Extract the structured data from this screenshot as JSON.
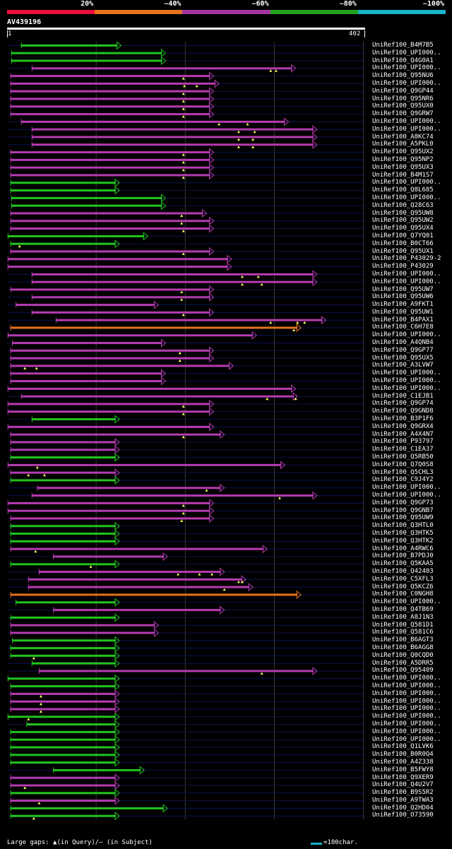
{
  "legend": {
    "segments": [
      {
        "color": "#e8103a",
        "label": "20%"
      },
      {
        "color": "#e5721d",
        "label": "~40%"
      },
      {
        "color": "#a534a0",
        "label": "~60%"
      },
      {
        "color": "#22a21e",
        "label": "~80%"
      },
      {
        "color": "#17b3c8",
        "label": "~100%"
      }
    ]
  },
  "query": {
    "name": "AV439196",
    "start": "1",
    "end": "402",
    "length": 402
  },
  "colors": {
    "green": "#22c41e",
    "purple": "#b53bb0",
    "orange": "#e5721d",
    "cyan": "#17b3c8",
    "row_line": "#0b1550",
    "grid": "#3a3a3a"
  },
  "hits": [
    {
      "label": "UniRef100_B4M7B5",
      "start": 16,
      "end": 128,
      "color": "green",
      "gaps": []
    },
    {
      "label": "UniRef100_UPI000..",
      "start": 5,
      "end": 178,
      "color": "green",
      "gaps": []
    },
    {
      "label": "UniRef100_Q4G0A1",
      "start": 5,
      "end": 178,
      "color": "green",
      "gaps": []
    },
    {
      "label": "UniRef100_UPI000..",
      "start": 28,
      "end": 324,
      "color": "purple",
      "gaps": [
        296,
        302
      ]
    },
    {
      "label": "UniRef100_Q95NU6",
      "start": 4,
      "end": 232,
      "color": "purple",
      "gaps": [
        198
      ]
    },
    {
      "label": "UniRef100_UPI000..",
      "start": 4,
      "end": 238,
      "color": "purple",
      "gaps": [
        199,
        213
      ]
    },
    {
      "label": "UniRef100_Q9GP44",
      "start": 4,
      "end": 232,
      "color": "purple",
      "gaps": [
        198
      ]
    },
    {
      "label": "UniRef100_Q95NR6",
      "start": 4,
      "end": 232,
      "color": "purple",
      "gaps": [
        198
      ]
    },
    {
      "label": "UniRef100_Q95UX0",
      "start": 4,
      "end": 232,
      "color": "purple",
      "gaps": [
        198
      ]
    },
    {
      "label": "UniRef100_Q9GRW7",
      "start": 4,
      "end": 232,
      "color": "purple",
      "gaps": [
        198
      ]
    },
    {
      "label": "UniRef100_UPI000..",
      "start": 16,
      "end": 316,
      "color": "purple",
      "gaps": [
        238,
        270
      ]
    },
    {
      "label": "UniRef100_UPI000..",
      "start": 28,
      "end": 348,
      "color": "purple",
      "gaps": [
        260,
        278
      ]
    },
    {
      "label": "UniRef100_A8KC74",
      "start": 28,
      "end": 348,
      "color": "purple",
      "gaps": [
        260,
        276
      ]
    },
    {
      "label": "UniRef100_A5PKL0",
      "start": 28,
      "end": 348,
      "color": "purple",
      "gaps": [
        260,
        276
      ]
    },
    {
      "label": "UniRef100_Q95UX2",
      "start": 4,
      "end": 232,
      "color": "purple",
      "gaps": [
        198
      ]
    },
    {
      "label": "UniRef100_Q95NP2",
      "start": 4,
      "end": 232,
      "color": "purple",
      "gaps": [
        198
      ]
    },
    {
      "label": "UniRef100_Q95UX3",
      "start": 4,
      "end": 232,
      "color": "purple",
      "gaps": [
        198
      ]
    },
    {
      "label": "UniRef100_B4M1S7",
      "start": 4,
      "end": 232,
      "color": "purple",
      "gaps": [
        198
      ]
    },
    {
      "label": "UniRef100_UPI000..",
      "start": 4,
      "end": 126,
      "color": "green",
      "gaps": []
    },
    {
      "label": "UniRef100_Q8L685",
      "start": 4,
      "end": 126,
      "color": "green",
      "gaps": []
    },
    {
      "label": "UniRef100_UPI000..",
      "start": 5,
      "end": 178,
      "color": "green",
      "gaps": []
    },
    {
      "label": "UniRef100_Q28C63",
      "start": 5,
      "end": 178,
      "color": "green",
      "gaps": []
    },
    {
      "label": "UniRef100_Q95UW8",
      "start": 4,
      "end": 224,
      "color": "purple",
      "gaps": [
        196
      ]
    },
    {
      "label": "UniRef100_Q95UW2",
      "start": 4,
      "end": 232,
      "color": "purple",
      "gaps": [
        196
      ]
    },
    {
      "label": "UniRef100_Q95UX4",
      "start": 4,
      "end": 232,
      "color": "purple",
      "gaps": [
        198
      ]
    },
    {
      "label": "UniRef100_Q7YQ01",
      "start": 1,
      "end": 158,
      "color": "green",
      "gaps": []
    },
    {
      "label": "UniRef100_B0CT66",
      "start": 4,
      "end": 126,
      "color": "green",
      "gaps": [
        14
      ]
    },
    {
      "label": "UniRef100_Q95UX1",
      "start": 4,
      "end": 232,
      "color": "purple",
      "gaps": [
        198
      ]
    },
    {
      "label": "UniRef100_P43029-2",
      "start": 1,
      "end": 252,
      "color": "purple",
      "gaps": []
    },
    {
      "label": "UniRef100_P43029",
      "start": 1,
      "end": 252,
      "color": "purple",
      "gaps": []
    },
    {
      "label": "UniRef100_UPI000..",
      "start": 28,
      "end": 348,
      "color": "purple",
      "gaps": [
        264,
        282
      ]
    },
    {
      "label": "UniRef100_UPI000..",
      "start": 28,
      "end": 348,
      "color": "purple",
      "gaps": [
        264,
        286
      ]
    },
    {
      "label": "UniRef100_Q95UW7",
      "start": 4,
      "end": 232,
      "color": "purple",
      "gaps": [
        196
      ]
    },
    {
      "label": "UniRef100_Q95UW6",
      "start": 28,
      "end": 232,
      "color": "purple",
      "gaps": [
        196
      ]
    },
    {
      "label": "UniRef100_A9FKT1",
      "start": 10,
      "end": 170,
      "color": "purple",
      "gaps": []
    },
    {
      "label": "UniRef100_Q95UW1",
      "start": 28,
      "end": 232,
      "color": "purple",
      "gaps": [
        198
      ]
    },
    {
      "label": "UniRef100_B4PAX1",
      "start": 55,
      "end": 358,
      "color": "purple",
      "gaps": [
        296,
        326,
        334
      ]
    },
    {
      "label": "UniRef100_C6H7E8",
      "start": 4,
      "end": 330,
      "color": "orange",
      "gaps": [
        322
      ]
    },
    {
      "label": "UniRef100_UPI000..",
      "start": 1,
      "end": 280,
      "color": "purple",
      "gaps": []
    },
    {
      "label": "UniRef100_A4QNB4",
      "start": 6,
      "end": 178,
      "color": "purple",
      "gaps": []
    },
    {
      "label": "UniRef100_Q9GP77",
      "start": 4,
      "end": 232,
      "color": "purple",
      "gaps": [
        194
      ]
    },
    {
      "label": "UniRef100_Q95UX5",
      "start": 4,
      "end": 232,
      "color": "purple",
      "gaps": [
        194
      ]
    },
    {
      "label": "UniRef100_A3LVW7",
      "start": 4,
      "end": 254,
      "color": "purple",
      "gaps": [
        20,
        33
      ]
    },
    {
      "label": "UniRef100_UPI000..",
      "start": 4,
      "end": 178,
      "color": "purple",
      "gaps": []
    },
    {
      "label": "UniRef100_UPI000..",
      "start": 4,
      "end": 178,
      "color": "purple",
      "gaps": []
    },
    {
      "label": "UniRef100_UPI000..",
      "start": 1,
      "end": 324,
      "color": "purple",
      "gaps": []
    },
    {
      "label": "UniRef100_C1EJB1",
      "start": 16,
      "end": 326,
      "color": "purple",
      "gaps": [
        292,
        324
      ]
    },
    {
      "label": "UniRef100_Q9GP74",
      "start": 1,
      "end": 232,
      "color": "purple",
      "gaps": [
        198
      ]
    },
    {
      "label": "UniRef100_Q9GND8",
      "start": 1,
      "end": 232,
      "color": "purple",
      "gaps": [
        198
      ]
    },
    {
      "label": "UniRef100_B3P1F6",
      "start": 28,
      "end": 126,
      "color": "green",
      "gaps": []
    },
    {
      "label": "UniRef100_Q9GRX4",
      "start": 1,
      "end": 232,
      "color": "purple",
      "gaps": []
    },
    {
      "label": "UniRef100_A4X4N7",
      "start": 4,
      "end": 244,
      "color": "purple",
      "gaps": [
        198
      ]
    },
    {
      "label": "UniRef100_P93797",
      "start": 4,
      "end": 126,
      "color": "purple",
      "gaps": []
    },
    {
      "label": "UniRef100_C1EA37",
      "start": 4,
      "end": 126,
      "color": "purple",
      "gaps": []
    },
    {
      "label": "UniRef100_Q5RB50",
      "start": 4,
      "end": 126,
      "color": "green",
      "gaps": []
    },
    {
      "label": "UniRef100_Q7Q0S8",
      "start": 1,
      "end": 312,
      "color": "purple",
      "gaps": [
        34
      ]
    },
    {
      "label": "UniRef100_Q5CHL3",
      "start": 4,
      "end": 126,
      "color": "purple",
      "gaps": [
        24,
        42
      ]
    },
    {
      "label": "UniRef100_C9J4Y2",
      "start": 4,
      "end": 126,
      "color": "green",
      "gaps": []
    },
    {
      "label": "UniRef100_UPI000..",
      "start": 34,
      "end": 244,
      "color": "purple",
      "gaps": [
        224
      ]
    },
    {
      "label": "UniRef100_UPI000..",
      "start": 28,
      "end": 348,
      "color": "purple",
      "gaps": [
        306
      ]
    },
    {
      "label": "UniRef100_Q9GP73",
      "start": 1,
      "end": 232,
      "color": "purple",
      "gaps": [
        198
      ]
    },
    {
      "label": "UniRef100_Q9GNB7",
      "start": 1,
      "end": 232,
      "color": "purple",
      "gaps": [
        198
      ]
    },
    {
      "label": "UniRef100_Q95UW9",
      "start": 4,
      "end": 232,
      "color": "purple",
      "gaps": [
        196
      ]
    },
    {
      "label": "UniRef100_Q3HTL0",
      "start": 4,
      "end": 126,
      "color": "green",
      "gaps": []
    },
    {
      "label": "UniRef100_Q3HTK5",
      "start": 4,
      "end": 126,
      "color": "green",
      "gaps": []
    },
    {
      "label": "UniRef100_Q3HTK2",
      "start": 4,
      "end": 126,
      "color": "green",
      "gaps": []
    },
    {
      "label": "UniRef100_A4RWC6",
      "start": 4,
      "end": 292,
      "color": "purple",
      "gaps": [
        32
      ]
    },
    {
      "label": "UniRef100_B7PDJ0",
      "start": 52,
      "end": 180,
      "color": "purple",
      "gaps": []
    },
    {
      "label": "UniRef100_Q5KAA5",
      "start": 4,
      "end": 126,
      "color": "green",
      "gaps": [
        94
      ]
    },
    {
      "label": "UniRef100_Q42403",
      "start": 36,
      "end": 244,
      "color": "purple",
      "gaps": [
        192,
        216,
        230
      ]
    },
    {
      "label": "UniRef100_C5XFL3",
      "start": 24,
      "end": 268,
      "color": "purple",
      "gaps": [
        260,
        264
      ]
    },
    {
      "label": "UniRef100_Q5KCZ6",
      "start": 24,
      "end": 276,
      "color": "purple",
      "gaps": [
        244
      ]
    },
    {
      "label": "UniRef100_C0NGH8",
      "start": 4,
      "end": 330,
      "color": "orange",
      "gaps": []
    },
    {
      "label": "UniRef100_UPI000..",
      "start": 10,
      "end": 126,
      "color": "green",
      "gaps": []
    },
    {
      "label": "UniRef100_Q4TB69",
      "start": 52,
      "end": 244,
      "color": "purple",
      "gaps": []
    },
    {
      "label": "UniRef100_A8J1N3",
      "start": 4,
      "end": 126,
      "color": "green",
      "gaps": []
    },
    {
      "label": "UniRef100_Q581D1",
      "start": 4,
      "end": 170,
      "color": "purple",
      "gaps": []
    },
    {
      "label": "UniRef100_Q581C6",
      "start": 4,
      "end": 170,
      "color": "purple",
      "gaps": []
    },
    {
      "label": "UniRef100_B6AGT3",
      "start": 6,
      "end": 126,
      "color": "green",
      "gaps": []
    },
    {
      "label": "UniRef100_B6AGG8",
      "start": 4,
      "end": 126,
      "color": "green",
      "gaps": []
    },
    {
      "label": "UniRef100_Q0CQD0",
      "start": 4,
      "end": 126,
      "color": "green",
      "gaps": [
        30
      ]
    },
    {
      "label": "UniRef100_A5DRR5",
      "start": 28,
      "end": 126,
      "color": "green",
      "gaps": []
    },
    {
      "label": "UniRef100_Q95409",
      "start": 36,
      "end": 348,
      "color": "purple",
      "gaps": [
        286
      ]
    },
    {
      "label": "UniRef100_UPI000..",
      "start": 1,
      "end": 126,
      "color": "green",
      "gaps": []
    },
    {
      "label": "UniRef100_UPI000..",
      "start": 4,
      "end": 126,
      "color": "green",
      "gaps": []
    },
    {
      "label": "UniRef100_UPI000..",
      "start": 4,
      "end": 126,
      "color": "purple",
      "gaps": [
        38
      ]
    },
    {
      "label": "UniRef100_UPI000..",
      "start": 4,
      "end": 126,
      "color": "purple",
      "gaps": [
        38
      ]
    },
    {
      "label": "UniRef100_UPI000..",
      "start": 4,
      "end": 126,
      "color": "purple",
      "gaps": [
        38
      ]
    },
    {
      "label": "UniRef100_UPI000..",
      "start": 1,
      "end": 126,
      "color": "green",
      "gaps": [
        24
      ]
    },
    {
      "label": "UniRef100_UPI000..",
      "start": 22,
      "end": 126,
      "color": "green",
      "gaps": []
    },
    {
      "label": "UniRef100_UPI000..",
      "start": 4,
      "end": 126,
      "color": "green",
      "gaps": []
    },
    {
      "label": "UniRef100_UPI000..",
      "start": 4,
      "end": 126,
      "color": "green",
      "gaps": []
    },
    {
      "label": "UniRef100_Q1LVK6",
      "start": 4,
      "end": 126,
      "color": "green",
      "gaps": []
    },
    {
      "label": "UniRef100_B0R0Q4",
      "start": 4,
      "end": 126,
      "color": "green",
      "gaps": []
    },
    {
      "label": "UniRef100_A4Z338",
      "start": 4,
      "end": 126,
      "color": "green",
      "gaps": []
    },
    {
      "label": "UniRef100_B5FWY8",
      "start": 52,
      "end": 154,
      "color": "green",
      "gaps": []
    },
    {
      "label": "UniRef100_Q9XER9",
      "start": 4,
      "end": 126,
      "color": "purple",
      "gaps": []
    },
    {
      "label": "UniRef100_Q4U2V7",
      "start": 4,
      "end": 126,
      "color": "purple",
      "gaps": [
        20
      ]
    },
    {
      "label": "UniRef100_B9S5R2",
      "start": 4,
      "end": 126,
      "color": "green",
      "gaps": []
    },
    {
      "label": "UniRef100_A9TWA3",
      "start": 4,
      "end": 126,
      "color": "purple",
      "gaps": [
        36
      ]
    },
    {
      "label": "UniRef100_Q2HD04",
      "start": 4,
      "end": 180,
      "color": "green",
      "gaps": []
    },
    {
      "label": "UniRef100_O73590",
      "start": 4,
      "end": 126,
      "color": "green",
      "gaps": [
        30
      ]
    }
  ],
  "footer": {
    "gaps_text": "Large gaps: ▲(in Query)/— (in Subject)",
    "scale_text": "=100char."
  }
}
